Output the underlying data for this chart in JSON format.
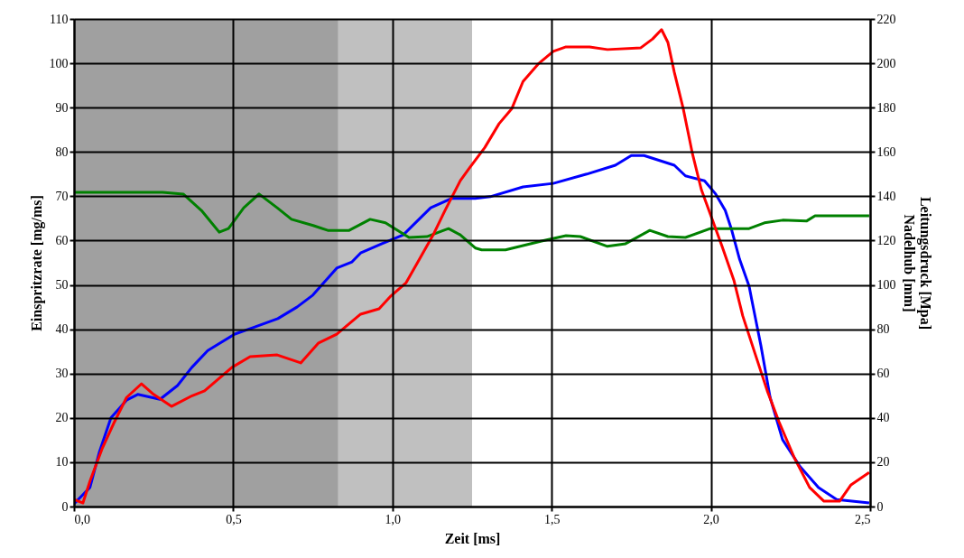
{
  "chart_data": {
    "type": "line",
    "xlabel": "Zeit [ms]",
    "ylabel": "Einspritzrate [mg/ms]",
    "y2label": "Leitungsdruck [Mpa]\nNadelhub [mm]",
    "xlim": [
      0,
      2.5
    ],
    "xticks": [
      {
        "value": 0,
        "label": "0,0"
      },
      {
        "value": 0.5,
        "label": "0,5"
      },
      {
        "value": 1,
        "label": "1,0"
      },
      {
        "value": 1.5,
        "label": "1,5"
      },
      {
        "value": 2,
        "label": "2,0"
      },
      {
        "value": 2.5,
        "label": "2,5"
      }
    ],
    "ylim": [
      0,
      110
    ],
    "yticks": [
      0,
      10,
      20,
      30,
      40,
      50,
      60,
      70,
      80,
      90,
      100,
      110
    ],
    "y2lim": [
      0,
      220
    ],
    "y2ticks": [
      0,
      20,
      40,
      60,
      80,
      100,
      120,
      140,
      160,
      180,
      200,
      220
    ],
    "grid": true,
    "bands": [
      {
        "axis": "x",
        "from": 0,
        "to": 0.83,
        "color": "#a0a0a0"
      },
      {
        "axis": "x",
        "from": 0.83,
        "to": 1.25,
        "color": "#c0c0c0"
      }
    ],
    "series": [
      {
        "color": "#0000ff",
        "x": [
          0,
          0.05,
          0.08,
          0.116,
          0.165,
          0.2,
          0.27,
          0.325,
          0.37,
          0.42,
          0.505,
          0.56,
          0.64,
          0.7,
          0.75,
          0.825,
          0.873,
          0.9,
          0.967,
          1.034,
          1.12,
          1.185,
          1.26,
          1.307,
          1.41,
          1.505,
          1.61,
          1.7,
          1.75,
          1.79,
          1.885,
          1.92,
          1.98,
          2.015,
          2.045,
          2.064,
          2.09,
          2.12,
          2.129,
          2.157,
          2.186,
          2.225,
          2.28,
          2.338,
          2.395,
          2.497
        ],
        "values": [
          0.6,
          4.3,
          12.4,
          20,
          24,
          25.3,
          24.2,
          27.3,
          31.4,
          35.2,
          38.9,
          40.3,
          42.4,
          45,
          47.7,
          53.8,
          55.2,
          57.2,
          59.3,
          61.3,
          67.4,
          69.5,
          69.5,
          69.9,
          72.1,
          72.9,
          75,
          77,
          79.2,
          79.2,
          77,
          74.6,
          73.5,
          70.5,
          66.8,
          62.7,
          55.8,
          49.7,
          46.4,
          36.3,
          24.6,
          15.1,
          9,
          4.3,
          1.6,
          0.8
        ]
      },
      {
        "color": "#ff0000",
        "axis": "y2",
        "x": [
          0,
          0.028,
          0.05,
          0.088,
          0.127,
          0.165,
          0.212,
          0.25,
          0.306,
          0.371,
          0.41,
          0.496,
          0.553,
          0.638,
          0.712,
          0.768,
          0.825,
          0.9,
          0.958,
          0.995,
          1.043,
          1.08,
          1.128,
          1.165,
          1.213,
          1.24,
          1.29,
          1.335,
          1.375,
          1.41,
          1.46,
          1.505,
          1.545,
          1.619,
          1.675,
          1.78,
          1.817,
          1.845,
          1.865,
          1.885,
          1.913,
          1.942,
          1.97,
          1.998,
          2.035,
          2.072,
          2.1,
          2.14,
          2.177,
          2.214,
          2.262,
          2.31,
          2.355,
          2.404,
          2.44,
          2.497
        ],
        "values": [
          3.2,
          1.6,
          11.4,
          26,
          38.2,
          49.2,
          55.4,
          50.6,
          45.2,
          50,
          52.2,
          62.8,
          67.6,
          68.4,
          64.8,
          73.8,
          77.8,
          86.8,
          89.2,
          95,
          101,
          110.4,
          122.6,
          133.6,
          147,
          152.4,
          162,
          172.8,
          179.6,
          191.8,
          200,
          205.4,
          207.4,
          207.4,
          206.2,
          207,
          211,
          215.2,
          209.4,
          196,
          179.6,
          159.2,
          143,
          132,
          117.4,
          102.2,
          86,
          68.4,
          52.2,
          38.2,
          22,
          8.6,
          2.4,
          2.4,
          9.8,
          15.4
        ]
      },
      {
        "color": "#008000",
        "x": [
          0,
          0.278,
          0.343,
          0.4,
          0.456,
          0.485,
          0.533,
          0.581,
          0.638,
          0.683,
          0.751,
          0.797,
          0.864,
          0.93,
          0.978,
          1.052,
          1.108,
          1.176,
          1.213,
          1.261,
          1.28,
          1.355,
          1.468,
          1.545,
          1.59,
          1.675,
          1.732,
          1.808,
          1.865,
          1.92,
          1.998,
          2.12,
          2.168,
          2.225,
          2.3,
          2.327,
          2.497
        ],
        "values": [
          70.9,
          70.9,
          70.5,
          66.8,
          61.9,
          62.7,
          67.4,
          70.5,
          67.4,
          64.8,
          63.4,
          62.3,
          62.3,
          64.8,
          64,
          60.7,
          60.9,
          62.7,
          61.3,
          58.3,
          57.9,
          57.9,
          59.9,
          61.1,
          60.9,
          58.7,
          59.3,
          62.3,
          60.9,
          60.7,
          62.7,
          62.7,
          64,
          64.6,
          64.4,
          65.6,
          65.6
        ]
      }
    ]
  }
}
